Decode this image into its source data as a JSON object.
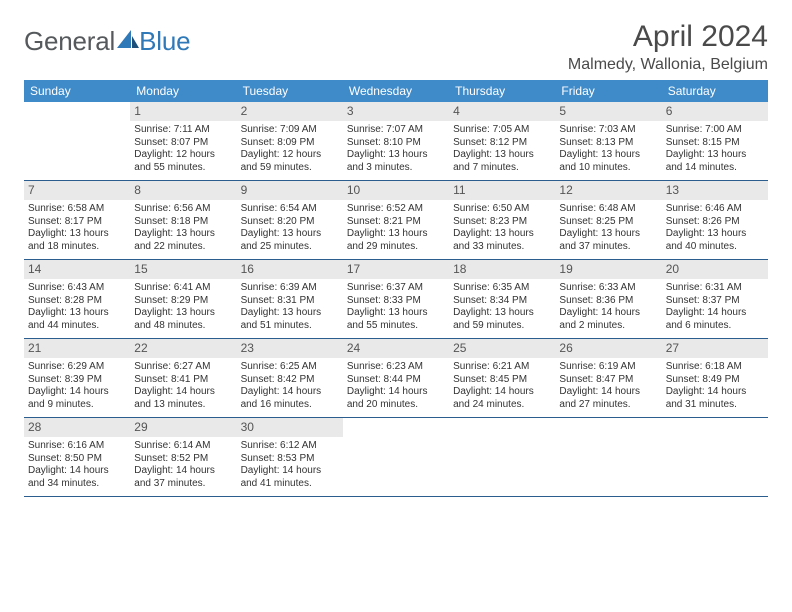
{
  "brand": {
    "word1": "General",
    "word2": "Blue"
  },
  "title": "April 2024",
  "location": "Malmedy, Wallonia, Belgium",
  "colors": {
    "header_bg": "#3f8ac8",
    "row_border": "#2b5e8f",
    "daynum_bg": "#e9e9e9",
    "text": "#333333",
    "brand_grey": "#56595c",
    "brand_blue": "#2f79b9"
  },
  "weekdays": [
    "Sunday",
    "Monday",
    "Tuesday",
    "Wednesday",
    "Thursday",
    "Friday",
    "Saturday"
  ],
  "weeks": [
    [
      {
        "n": "",
        "sr": "",
        "ss": "",
        "dl": ""
      },
      {
        "n": "1",
        "sr": "Sunrise: 7:11 AM",
        "ss": "Sunset: 8:07 PM",
        "dl": "Daylight: 12 hours and 55 minutes."
      },
      {
        "n": "2",
        "sr": "Sunrise: 7:09 AM",
        "ss": "Sunset: 8:09 PM",
        "dl": "Daylight: 12 hours and 59 minutes."
      },
      {
        "n": "3",
        "sr": "Sunrise: 7:07 AM",
        "ss": "Sunset: 8:10 PM",
        "dl": "Daylight: 13 hours and 3 minutes."
      },
      {
        "n": "4",
        "sr": "Sunrise: 7:05 AM",
        "ss": "Sunset: 8:12 PM",
        "dl": "Daylight: 13 hours and 7 minutes."
      },
      {
        "n": "5",
        "sr": "Sunrise: 7:03 AM",
        "ss": "Sunset: 8:13 PM",
        "dl": "Daylight: 13 hours and 10 minutes."
      },
      {
        "n": "6",
        "sr": "Sunrise: 7:00 AM",
        "ss": "Sunset: 8:15 PM",
        "dl": "Daylight: 13 hours and 14 minutes."
      }
    ],
    [
      {
        "n": "7",
        "sr": "Sunrise: 6:58 AM",
        "ss": "Sunset: 8:17 PM",
        "dl": "Daylight: 13 hours and 18 minutes."
      },
      {
        "n": "8",
        "sr": "Sunrise: 6:56 AM",
        "ss": "Sunset: 8:18 PM",
        "dl": "Daylight: 13 hours and 22 minutes."
      },
      {
        "n": "9",
        "sr": "Sunrise: 6:54 AM",
        "ss": "Sunset: 8:20 PM",
        "dl": "Daylight: 13 hours and 25 minutes."
      },
      {
        "n": "10",
        "sr": "Sunrise: 6:52 AM",
        "ss": "Sunset: 8:21 PM",
        "dl": "Daylight: 13 hours and 29 minutes."
      },
      {
        "n": "11",
        "sr": "Sunrise: 6:50 AM",
        "ss": "Sunset: 8:23 PM",
        "dl": "Daylight: 13 hours and 33 minutes."
      },
      {
        "n": "12",
        "sr": "Sunrise: 6:48 AM",
        "ss": "Sunset: 8:25 PM",
        "dl": "Daylight: 13 hours and 37 minutes."
      },
      {
        "n": "13",
        "sr": "Sunrise: 6:46 AM",
        "ss": "Sunset: 8:26 PM",
        "dl": "Daylight: 13 hours and 40 minutes."
      }
    ],
    [
      {
        "n": "14",
        "sr": "Sunrise: 6:43 AM",
        "ss": "Sunset: 8:28 PM",
        "dl": "Daylight: 13 hours and 44 minutes."
      },
      {
        "n": "15",
        "sr": "Sunrise: 6:41 AM",
        "ss": "Sunset: 8:29 PM",
        "dl": "Daylight: 13 hours and 48 minutes."
      },
      {
        "n": "16",
        "sr": "Sunrise: 6:39 AM",
        "ss": "Sunset: 8:31 PM",
        "dl": "Daylight: 13 hours and 51 minutes."
      },
      {
        "n": "17",
        "sr": "Sunrise: 6:37 AM",
        "ss": "Sunset: 8:33 PM",
        "dl": "Daylight: 13 hours and 55 minutes."
      },
      {
        "n": "18",
        "sr": "Sunrise: 6:35 AM",
        "ss": "Sunset: 8:34 PM",
        "dl": "Daylight: 13 hours and 59 minutes."
      },
      {
        "n": "19",
        "sr": "Sunrise: 6:33 AM",
        "ss": "Sunset: 8:36 PM",
        "dl": "Daylight: 14 hours and 2 minutes."
      },
      {
        "n": "20",
        "sr": "Sunrise: 6:31 AM",
        "ss": "Sunset: 8:37 PM",
        "dl": "Daylight: 14 hours and 6 minutes."
      }
    ],
    [
      {
        "n": "21",
        "sr": "Sunrise: 6:29 AM",
        "ss": "Sunset: 8:39 PM",
        "dl": "Daylight: 14 hours and 9 minutes."
      },
      {
        "n": "22",
        "sr": "Sunrise: 6:27 AM",
        "ss": "Sunset: 8:41 PM",
        "dl": "Daylight: 14 hours and 13 minutes."
      },
      {
        "n": "23",
        "sr": "Sunrise: 6:25 AM",
        "ss": "Sunset: 8:42 PM",
        "dl": "Daylight: 14 hours and 16 minutes."
      },
      {
        "n": "24",
        "sr": "Sunrise: 6:23 AM",
        "ss": "Sunset: 8:44 PM",
        "dl": "Daylight: 14 hours and 20 minutes."
      },
      {
        "n": "25",
        "sr": "Sunrise: 6:21 AM",
        "ss": "Sunset: 8:45 PM",
        "dl": "Daylight: 14 hours and 24 minutes."
      },
      {
        "n": "26",
        "sr": "Sunrise: 6:19 AM",
        "ss": "Sunset: 8:47 PM",
        "dl": "Daylight: 14 hours and 27 minutes."
      },
      {
        "n": "27",
        "sr": "Sunrise: 6:18 AM",
        "ss": "Sunset: 8:49 PM",
        "dl": "Daylight: 14 hours and 31 minutes."
      }
    ],
    [
      {
        "n": "28",
        "sr": "Sunrise: 6:16 AM",
        "ss": "Sunset: 8:50 PM",
        "dl": "Daylight: 14 hours and 34 minutes."
      },
      {
        "n": "29",
        "sr": "Sunrise: 6:14 AM",
        "ss": "Sunset: 8:52 PM",
        "dl": "Daylight: 14 hours and 37 minutes."
      },
      {
        "n": "30",
        "sr": "Sunrise: 6:12 AM",
        "ss": "Sunset: 8:53 PM",
        "dl": "Daylight: 14 hours and 41 minutes."
      },
      {
        "n": "",
        "sr": "",
        "ss": "",
        "dl": ""
      },
      {
        "n": "",
        "sr": "",
        "ss": "",
        "dl": ""
      },
      {
        "n": "",
        "sr": "",
        "ss": "",
        "dl": ""
      },
      {
        "n": "",
        "sr": "",
        "ss": "",
        "dl": ""
      }
    ]
  ]
}
